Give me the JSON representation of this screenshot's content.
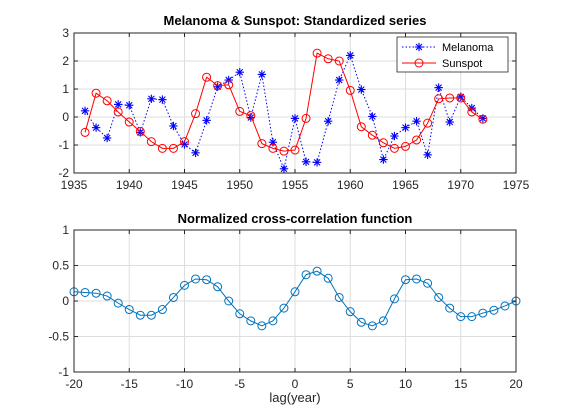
{
  "chart_data": [
    {
      "type": "line",
      "title": "Melanoma & Sunspot: Standardized series",
      "xlabel": "",
      "ylabel": "",
      "xlim": [
        1935,
        1975
      ],
      "ylim": [
        -2,
        3
      ],
      "xticks": [
        1935,
        1940,
        1945,
        1950,
        1955,
        1960,
        1965,
        1970,
        1975
      ],
      "yticks": [
        -2,
        -1,
        0,
        1,
        2,
        3
      ],
      "grid": true,
      "legend": "top-right",
      "series": [
        {
          "name": "Melanoma",
          "color": "#0000ff",
          "line": "dotted",
          "marker": "asterisk",
          "x": [
            1936,
            1937,
            1938,
            1939,
            1940,
            1941,
            1942,
            1943,
            1944,
            1945,
            1946,
            1947,
            1948,
            1949,
            1950,
            1951,
            1952,
            1953,
            1954,
            1955,
            1956,
            1957,
            1958,
            1959,
            1960,
            1961,
            1962,
            1963,
            1964,
            1965,
            1966,
            1967,
            1968,
            1969,
            1970,
            1971,
            1972
          ],
          "y": [
            0.22,
            -0.38,
            -0.75,
            0.45,
            0.42,
            -0.55,
            0.65,
            0.62,
            -0.32,
            -0.98,
            -1.28,
            -0.12,
            1.08,
            1.32,
            1.6,
            -0.02,
            1.52,
            -0.9,
            -1.85,
            -0.05,
            -1.6,
            -1.62,
            -0.15,
            1.32,
            2.2,
            0.98,
            0.02,
            -1.52,
            -0.68,
            -0.38,
            -0.15,
            -1.35,
            1.05,
            -0.18,
            0.72,
            0.32,
            -0.05
          ]
        },
        {
          "name": "Sunspot",
          "color": "#ff0000",
          "line": "solid",
          "marker": "circle",
          "x": [
            1936,
            1937,
            1938,
            1939,
            1940,
            1941,
            1942,
            1943,
            1944,
            1945,
            1946,
            1947,
            1948,
            1949,
            1950,
            1951,
            1952,
            1953,
            1954,
            1955,
            1956,
            1957,
            1958,
            1959,
            1960,
            1961,
            1962,
            1963,
            1964,
            1965,
            1966,
            1967,
            1968,
            1969,
            1970,
            1971,
            1972
          ],
          "y": [
            -0.55,
            0.85,
            0.58,
            0.18,
            -0.18,
            -0.52,
            -0.88,
            -1.12,
            -1.12,
            -0.88,
            0.12,
            1.42,
            1.12,
            1.15,
            0.2,
            0.05,
            -0.95,
            -1.12,
            -1.22,
            -1.18,
            -0.05,
            2.28,
            2.08,
            2.0,
            0.95,
            -0.35,
            -0.65,
            -0.92,
            -1.12,
            -1.05,
            -0.82,
            -0.22,
            0.65,
            0.68,
            0.68,
            0.18,
            -0.08
          ]
        }
      ]
    },
    {
      "type": "line",
      "title": "Normalized cross-correlation function",
      "xlabel": "lag(year)",
      "ylabel": "",
      "xlim": [
        -20,
        20
      ],
      "ylim": [
        -1,
        1
      ],
      "xticks": [
        -20,
        -15,
        -10,
        -5,
        0,
        5,
        10,
        15,
        20
      ],
      "yticks": [
        -1,
        -0.5,
        0,
        0.5,
        1
      ],
      "grid": true,
      "series": [
        {
          "color": "#0072bd",
          "line": "solid",
          "marker": "circle",
          "x": [
            -20,
            -19,
            -18,
            -17,
            -16,
            -15,
            -14,
            -13,
            -12,
            -11,
            -10,
            -9,
            -8,
            -7,
            -6,
            -5,
            -4,
            -3,
            -2,
            -1,
            0,
            1,
            2,
            3,
            4,
            5,
            6,
            7,
            8,
            9,
            10,
            11,
            12,
            13,
            14,
            15,
            16,
            17,
            18,
            19,
            20
          ],
          "y": [
            0.13,
            0.12,
            0.11,
            0.07,
            -0.03,
            -0.12,
            -0.2,
            -0.2,
            -0.12,
            0.05,
            0.22,
            0.31,
            0.3,
            0.2,
            0.0,
            -0.18,
            -0.28,
            -0.35,
            -0.28,
            -0.1,
            0.13,
            0.37,
            0.42,
            0.32,
            0.05,
            -0.15,
            -0.3,
            -0.35,
            -0.28,
            0.03,
            0.3,
            0.31,
            0.25,
            0.05,
            -0.1,
            -0.22,
            -0.22,
            -0.17,
            -0.13,
            -0.07,
            0.0
          ]
        }
      ]
    }
  ]
}
